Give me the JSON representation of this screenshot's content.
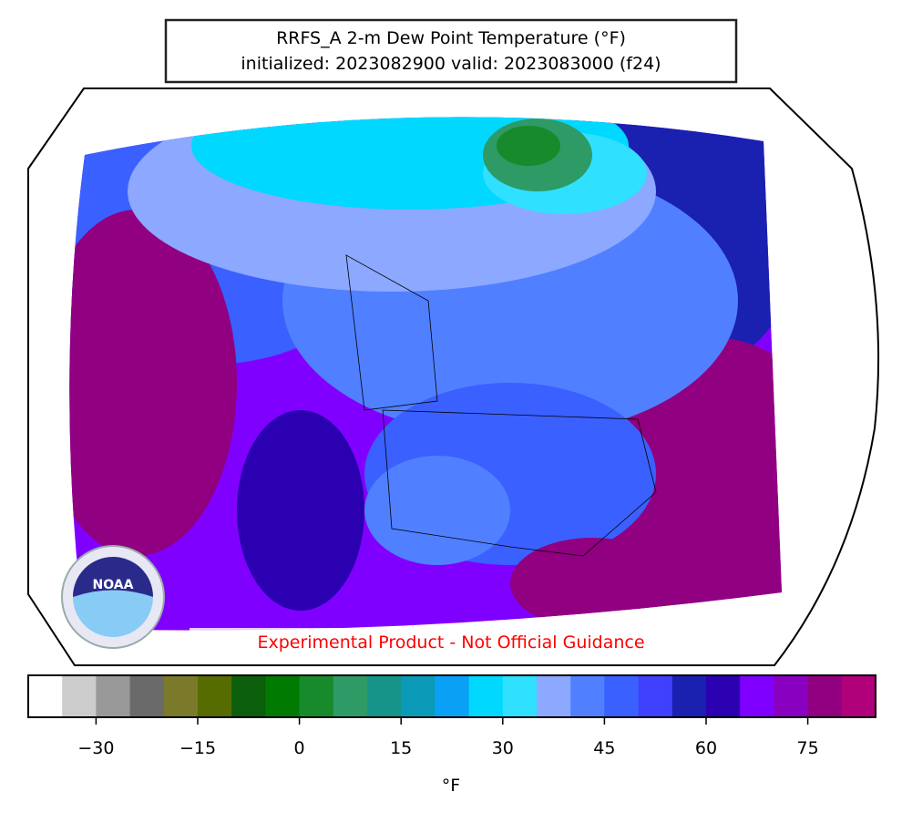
{
  "title": {
    "line1": "RRFS_A 2-m Dew Point Temperature (°F)",
    "line2": "initialized: 2023082900 valid: 2023083000 (f24)"
  },
  "watermark": "Experimental Product - Not Official Guidance",
  "logo": "NOAA",
  "colorbar": {
    "lim": [
      -40,
      85
    ],
    "colors": [
      "#ffffff",
      "#cccccc",
      "#999999",
      "#6a6a6a",
      "#7a7a2a",
      "#566b00",
      "#0b5e0b",
      "#007a00",
      "#178a2c",
      "#2e9a66",
      "#16948a",
      "#0a9ab8",
      "#0aa0f5",
      "#00d8ff",
      "#30e0ff",
      "#8ca8ff",
      "#5080ff",
      "#3a60ff",
      "#4040ff",
      "#1a20b0",
      "#2a00b0",
      "#8000ff",
      "#8a00c0",
      "#900080",
      "#b0007a"
    ],
    "ticks": [
      {
        "value": -30,
        "label": "−30"
      },
      {
        "value": -15,
        "label": "−15"
      },
      0,
      15,
      30,
      45,
      60,
      75
    ],
    "label": "°F"
  }
}
